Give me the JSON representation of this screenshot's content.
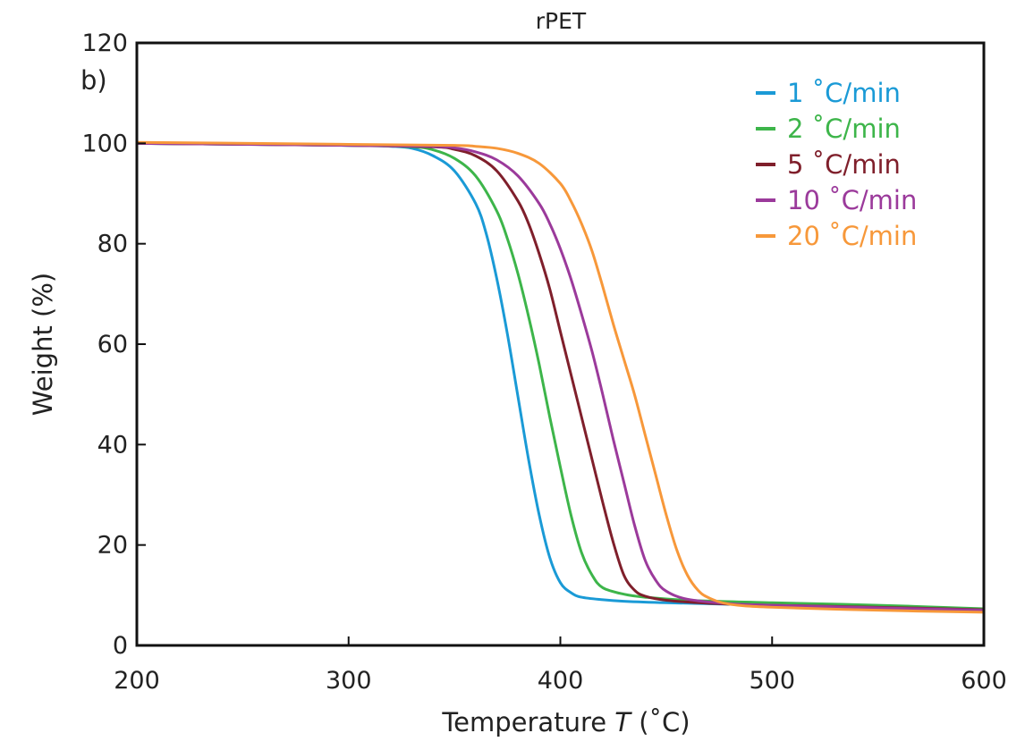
{
  "chart_data": {
    "type": "line",
    "title": "rPET",
    "panel_label": "b)",
    "xlabel": "Temperature ",
    "xlabel_symbol": "T",
    "xlabel_unit": " (˚C)",
    "ylabel": "Weight (%)",
    "xlim": [
      200,
      600
    ],
    "ylim": [
      0,
      120
    ],
    "xticks": [
      200,
      300,
      400,
      500,
      600
    ],
    "yticks": [
      0,
      20,
      40,
      60,
      80,
      100,
      120
    ],
    "grid": false,
    "legend_position": "top-right",
    "series": [
      {
        "name": "1 ˚C/min",
        "color": "#1a9ad6",
        "x": [
          200,
          300,
          320,
          330,
          340,
          350,
          360,
          365,
          370,
          375,
          380,
          385,
          390,
          395,
          400,
          405,
          410,
          420,
          430,
          450,
          500,
          550,
          600
        ],
        "y": [
          100,
          99.6,
          99.4,
          99.0,
          97.5,
          94.5,
          88.0,
          82.0,
          73.0,
          62.0,
          49.5,
          37.0,
          26.0,
          17.5,
          12.5,
          10.5,
          9.6,
          9.1,
          8.8,
          8.5,
          8.0,
          7.5,
          7.0
        ]
      },
      {
        "name": "2 ˚C/min",
        "color": "#3db54a",
        "x": [
          200,
          300,
          330,
          340,
          350,
          360,
          370,
          375,
          380,
          385,
          390,
          395,
          400,
          405,
          410,
          415,
          420,
          430,
          440,
          460,
          500,
          550,
          600
        ],
        "y": [
          100,
          99.6,
          99.3,
          98.7,
          97.0,
          93.5,
          86.5,
          81.0,
          74.0,
          65.5,
          56.0,
          45.5,
          35.5,
          26.0,
          18.5,
          14.0,
          11.5,
          10.2,
          9.6,
          9.0,
          8.5,
          8.0,
          7.3
        ]
      },
      {
        "name": "5 ˚C/min",
        "color": "#7f1f2b",
        "x": [
          200,
          300,
          340,
          350,
          360,
          370,
          380,
          385,
          390,
          395,
          400,
          405,
          410,
          415,
          420,
          425,
          430,
          435,
          440,
          450,
          470,
          500,
          550,
          600
        ],
        "y": [
          100,
          99.6,
          99.3,
          98.8,
          97.5,
          94.5,
          88.5,
          84.0,
          78.0,
          71.0,
          62.5,
          54.0,
          45.5,
          37.0,
          28.5,
          20.5,
          14.0,
          11.0,
          9.8,
          9.0,
          8.4,
          8.0,
          7.6,
          7.1
        ]
      },
      {
        "name": "10 ˚C/min",
        "color": "#9b3a9b",
        "x": [
          200,
          300,
          340,
          350,
          360,
          370,
          380,
          390,
          395,
          400,
          405,
          410,
          415,
          420,
          425,
          430,
          435,
          440,
          445,
          450,
          460,
          480,
          500,
          550,
          600
        ],
        "y": [
          100,
          99.6,
          99.4,
          99.1,
          98.3,
          96.7,
          93.5,
          88.0,
          84.0,
          79.0,
          73.0,
          66.0,
          58.5,
          50.0,
          41.0,
          32.5,
          24.0,
          17.0,
          13.0,
          10.8,
          9.2,
          8.3,
          8.0,
          7.5,
          7.0
        ]
      },
      {
        "name": "20 ˚C/min",
        "color": "#f7983a",
        "x": [
          200,
          300,
          350,
          360,
          370,
          380,
          390,
          400,
          405,
          410,
          415,
          420,
          425,
          430,
          435,
          440,
          445,
          450,
          455,
          460,
          465,
          470,
          480,
          500,
          550,
          600
        ],
        "y": [
          100.2,
          99.8,
          99.6,
          99.4,
          99.0,
          98.0,
          96.0,
          92.0,
          88.5,
          84.0,
          78.5,
          71.5,
          64.0,
          57.0,
          50.0,
          42.0,
          34.0,
          26.0,
          19.0,
          14.0,
          11.0,
          9.5,
          8.2,
          7.6,
          7.0,
          6.6
        ]
      }
    ]
  }
}
